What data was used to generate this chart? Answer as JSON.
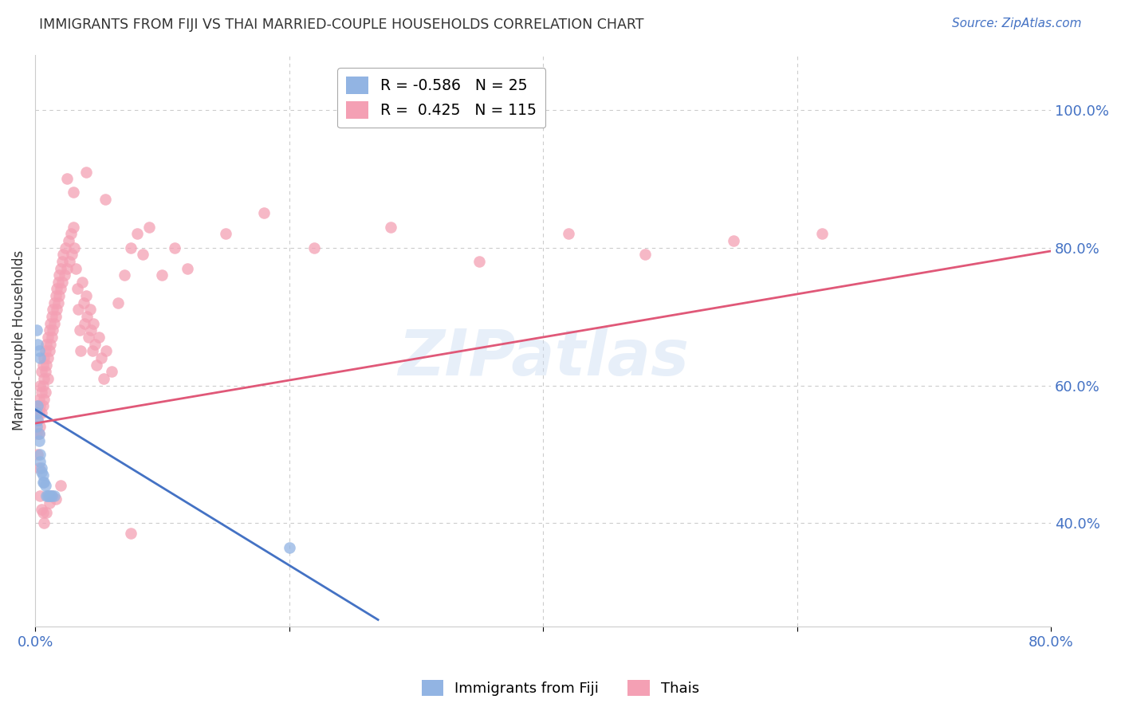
{
  "title": "IMMIGRANTS FROM FIJI VS THAI MARRIED-COUPLE HOUSEHOLDS CORRELATION CHART",
  "source": "Source: ZipAtlas.com",
  "ylabel": "Married-couple Households",
  "ytick_labels": [
    "100.0%",
    "80.0%",
    "60.0%",
    "40.0%"
  ],
  "ytick_values": [
    1.0,
    0.8,
    0.6,
    0.4
  ],
  "xlim": [
    0.0,
    0.8
  ],
  "ylim": [
    0.25,
    1.08
  ],
  "fiji_R": -0.586,
  "fiji_N": 25,
  "thai_R": 0.425,
  "thai_N": 115,
  "fiji_color": "#92b4e3",
  "thai_color": "#f4a0b4",
  "fiji_line_color": "#4472c4",
  "thai_line_color": "#e05878",
  "fiji_x": [
    0.001,
    0.001,
    0.002,
    0.002,
    0.003,
    0.003,
    0.004,
    0.004,
    0.005,
    0.005,
    0.006,
    0.006,
    0.007,
    0.008,
    0.009,
    0.01,
    0.011,
    0.012,
    0.013,
    0.015,
    0.001,
    0.002,
    0.003,
    0.004,
    0.2
  ],
  "fiji_y": [
    0.56,
    0.54,
    0.57,
    0.55,
    0.53,
    0.52,
    0.5,
    0.49,
    0.48,
    0.475,
    0.46,
    0.47,
    0.46,
    0.455,
    0.44,
    0.44,
    0.44,
    0.44,
    0.44,
    0.44,
    0.68,
    0.66,
    0.65,
    0.64,
    0.365
  ],
  "thai_x": [
    0.001,
    0.001,
    0.002,
    0.002,
    0.002,
    0.003,
    0.003,
    0.003,
    0.004,
    0.004,
    0.004,
    0.005,
    0.005,
    0.005,
    0.006,
    0.006,
    0.006,
    0.007,
    0.007,
    0.007,
    0.008,
    0.008,
    0.008,
    0.009,
    0.009,
    0.01,
    0.01,
    0.01,
    0.011,
    0.011,
    0.012,
    0.012,
    0.013,
    0.013,
    0.014,
    0.014,
    0.015,
    0.015,
    0.016,
    0.016,
    0.017,
    0.017,
    0.018,
    0.018,
    0.019,
    0.019,
    0.02,
    0.02,
    0.021,
    0.021,
    0.022,
    0.023,
    0.024,
    0.025,
    0.026,
    0.027,
    0.028,
    0.029,
    0.03,
    0.031,
    0.032,
    0.033,
    0.034,
    0.035,
    0.036,
    0.037,
    0.038,
    0.039,
    0.04,
    0.041,
    0.042,
    0.043,
    0.044,
    0.045,
    0.046,
    0.047,
    0.048,
    0.05,
    0.052,
    0.054,
    0.056,
    0.06,
    0.065,
    0.07,
    0.075,
    0.08,
    0.085,
    0.09,
    0.1,
    0.11,
    0.12,
    0.15,
    0.18,
    0.22,
    0.28,
    0.35,
    0.42,
    0.48,
    0.55,
    0.62,
    0.003,
    0.004,
    0.005,
    0.006,
    0.007,
    0.009,
    0.011,
    0.013,
    0.016,
    0.02,
    0.025,
    0.03,
    0.04,
    0.055,
    0.075
  ],
  "thai_y": [
    0.56,
    0.53,
    0.57,
    0.55,
    0.5,
    0.58,
    0.56,
    0.53,
    0.6,
    0.57,
    0.54,
    0.62,
    0.59,
    0.56,
    0.63,
    0.6,
    0.57,
    0.64,
    0.61,
    0.58,
    0.65,
    0.62,
    0.59,
    0.66,
    0.63,
    0.67,
    0.64,
    0.61,
    0.68,
    0.65,
    0.69,
    0.66,
    0.7,
    0.67,
    0.71,
    0.68,
    0.72,
    0.69,
    0.73,
    0.7,
    0.74,
    0.71,
    0.75,
    0.72,
    0.76,
    0.73,
    0.77,
    0.74,
    0.78,
    0.75,
    0.79,
    0.76,
    0.8,
    0.77,
    0.81,
    0.78,
    0.82,
    0.79,
    0.83,
    0.8,
    0.77,
    0.74,
    0.71,
    0.68,
    0.65,
    0.75,
    0.72,
    0.69,
    0.73,
    0.7,
    0.67,
    0.71,
    0.68,
    0.65,
    0.69,
    0.66,
    0.63,
    0.67,
    0.64,
    0.61,
    0.65,
    0.62,
    0.72,
    0.76,
    0.8,
    0.82,
    0.79,
    0.83,
    0.76,
    0.8,
    0.77,
    0.82,
    0.85,
    0.8,
    0.83,
    0.78,
    0.82,
    0.79,
    0.81,
    0.82,
    0.48,
    0.44,
    0.42,
    0.415,
    0.4,
    0.415,
    0.43,
    0.44,
    0.435,
    0.455,
    0.9,
    0.88,
    0.91,
    0.87,
    0.385
  ],
  "background_color": "#ffffff",
  "grid_color": "#cccccc",
  "title_color": "#333333",
  "axis_label_color": "#4472c4",
  "watermark": "ZIPatlas",
  "legend_fiji_label": "Immigrants from Fiji",
  "legend_thai_label": "Thais",
  "fiji_line_x": [
    0.0,
    0.27
  ],
  "fiji_line_y": [
    0.565,
    0.26
  ],
  "thai_line_x": [
    0.0,
    0.8
  ],
  "thai_line_y": [
    0.545,
    0.795
  ]
}
